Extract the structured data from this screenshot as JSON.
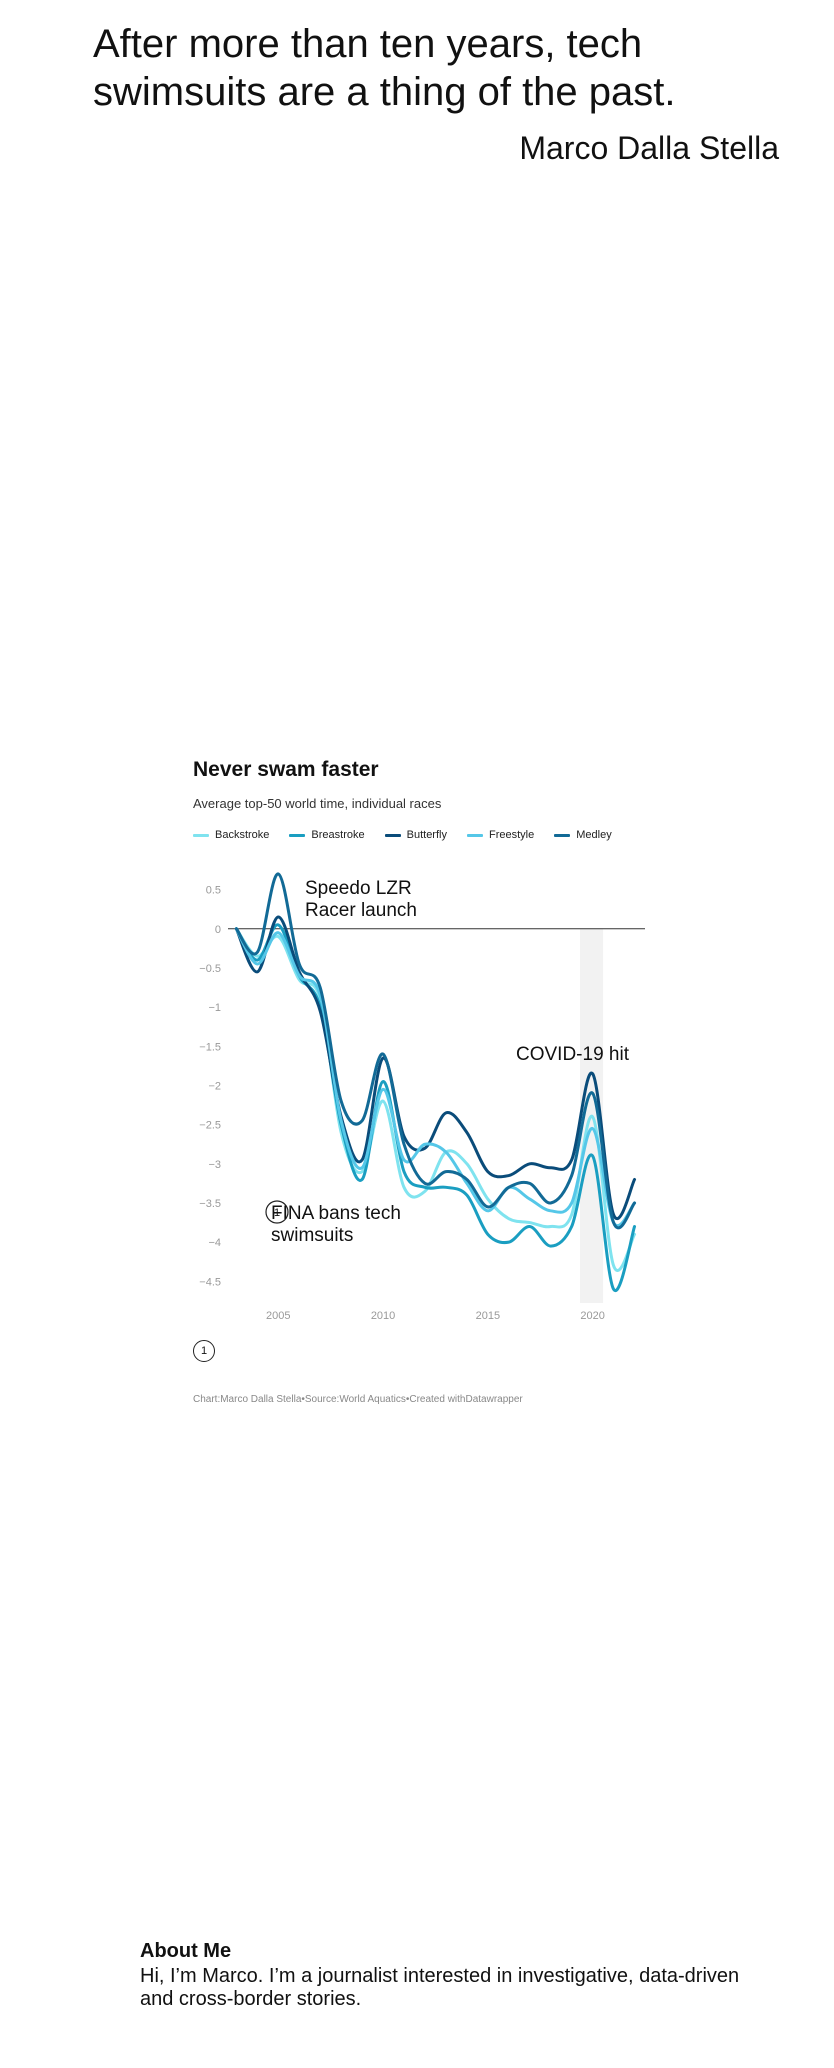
{
  "page": {
    "headline": "After more than ten years, tech swimsuits are a thing of the past.",
    "byline": "Marco Dalla Stella"
  },
  "chart_data": {
    "type": "line",
    "title": "Never swam faster",
    "subtitle": "Average top-50 world time, individual races",
    "x": [
      2003,
      2004,
      2005,
      2006,
      2007,
      2008,
      2009,
      2010,
      2011,
      2012,
      2013,
      2014,
      2015,
      2016,
      2017,
      2018,
      2019,
      2020,
      2021,
      2022
    ],
    "xticks": [
      "2005",
      "2010",
      "2015",
      "2020"
    ],
    "xtick_values": [
      2005,
      2010,
      2015,
      2020
    ],
    "yticks": [
      "0.5",
      "0",
      "−0.5",
      "−1",
      "−1.5",
      "−2",
      "−2.5",
      "−3",
      "−3.5",
      "−4",
      "−4.5"
    ],
    "ytick_values": [
      0.5,
      0,
      -0.5,
      -1,
      -1.5,
      -2,
      -2.5,
      -3,
      -3.5,
      -4,
      -4.5
    ],
    "ylim": [
      -4.7,
      0.75
    ],
    "xlim": [
      2002.6,
      2022.5
    ],
    "series": [
      {
        "name": "Backstroke",
        "color": "#7fe3ef",
        "values": [
          0,
          -0.35,
          -0.1,
          -0.65,
          -0.9,
          -2.6,
          -3.1,
          -2.2,
          -3.3,
          -3.35,
          -2.85,
          -3.0,
          -3.45,
          -3.7,
          -3.75,
          -3.8,
          -3.65,
          -2.4,
          -4.3,
          -3.9
        ]
      },
      {
        "name": "Breastroke",
        "color": "#1a9ec1",
        "values": [
          0,
          -0.4,
          0.05,
          -0.6,
          -1.0,
          -2.5,
          -3.2,
          -1.95,
          -3.1,
          -3.3,
          -3.3,
          -3.4,
          -3.9,
          -4.0,
          -3.8,
          -4.05,
          -3.8,
          -2.9,
          -4.6,
          -3.8
        ]
      },
      {
        "name": "Butterfly",
        "color": "#0a4c7a",
        "values": [
          0,
          -0.55,
          0.15,
          -0.55,
          -1.05,
          -2.4,
          -2.95,
          -1.65,
          -2.65,
          -2.8,
          -2.35,
          -2.6,
          -3.1,
          -3.15,
          -3.0,
          -3.05,
          -2.95,
          -1.85,
          -3.65,
          -3.2
        ]
      },
      {
        "name": "Freestyle",
        "color": "#55c7e8",
        "values": [
          0,
          -0.45,
          -0.05,
          -0.6,
          -0.85,
          -2.45,
          -3.05,
          -2.05,
          -2.95,
          -2.75,
          -2.85,
          -3.25,
          -3.6,
          -3.3,
          -3.45,
          -3.6,
          -3.5,
          -2.55,
          -3.75,
          -3.5
        ]
      },
      {
        "name": "Medley",
        "color": "#126a96",
        "values": [
          0,
          -0.3,
          0.7,
          -0.45,
          -0.75,
          -2.2,
          -2.45,
          -1.6,
          -2.75,
          -3.25,
          -3.1,
          -3.2,
          -3.55,
          -3.3,
          -3.25,
          -3.5,
          -3.15,
          -2.1,
          -3.75,
          -3.5
        ]
      }
    ],
    "highlight_band": {
      "x0": 2019.4,
      "x1": 2020.5,
      "color": "#f2f2f2"
    },
    "annotations": {
      "lzr": "Speedo LZR\nRacer launch",
      "covid": "COVID-19 hit",
      "fina": "FINA bans tech\nswimsuits",
      "fina_marker": "1"
    },
    "footnote_marker": "1",
    "credits": "Chart:Marco Dalla Stella•Source:World Aquatics•Created withDatawrapper",
    "grid": false,
    "legend_position": "top"
  },
  "about": {
    "title": "About Me",
    "text": "Hi, I’m Marco. I’m a journalist interested in investigative, data-driven and cross-border stories."
  }
}
